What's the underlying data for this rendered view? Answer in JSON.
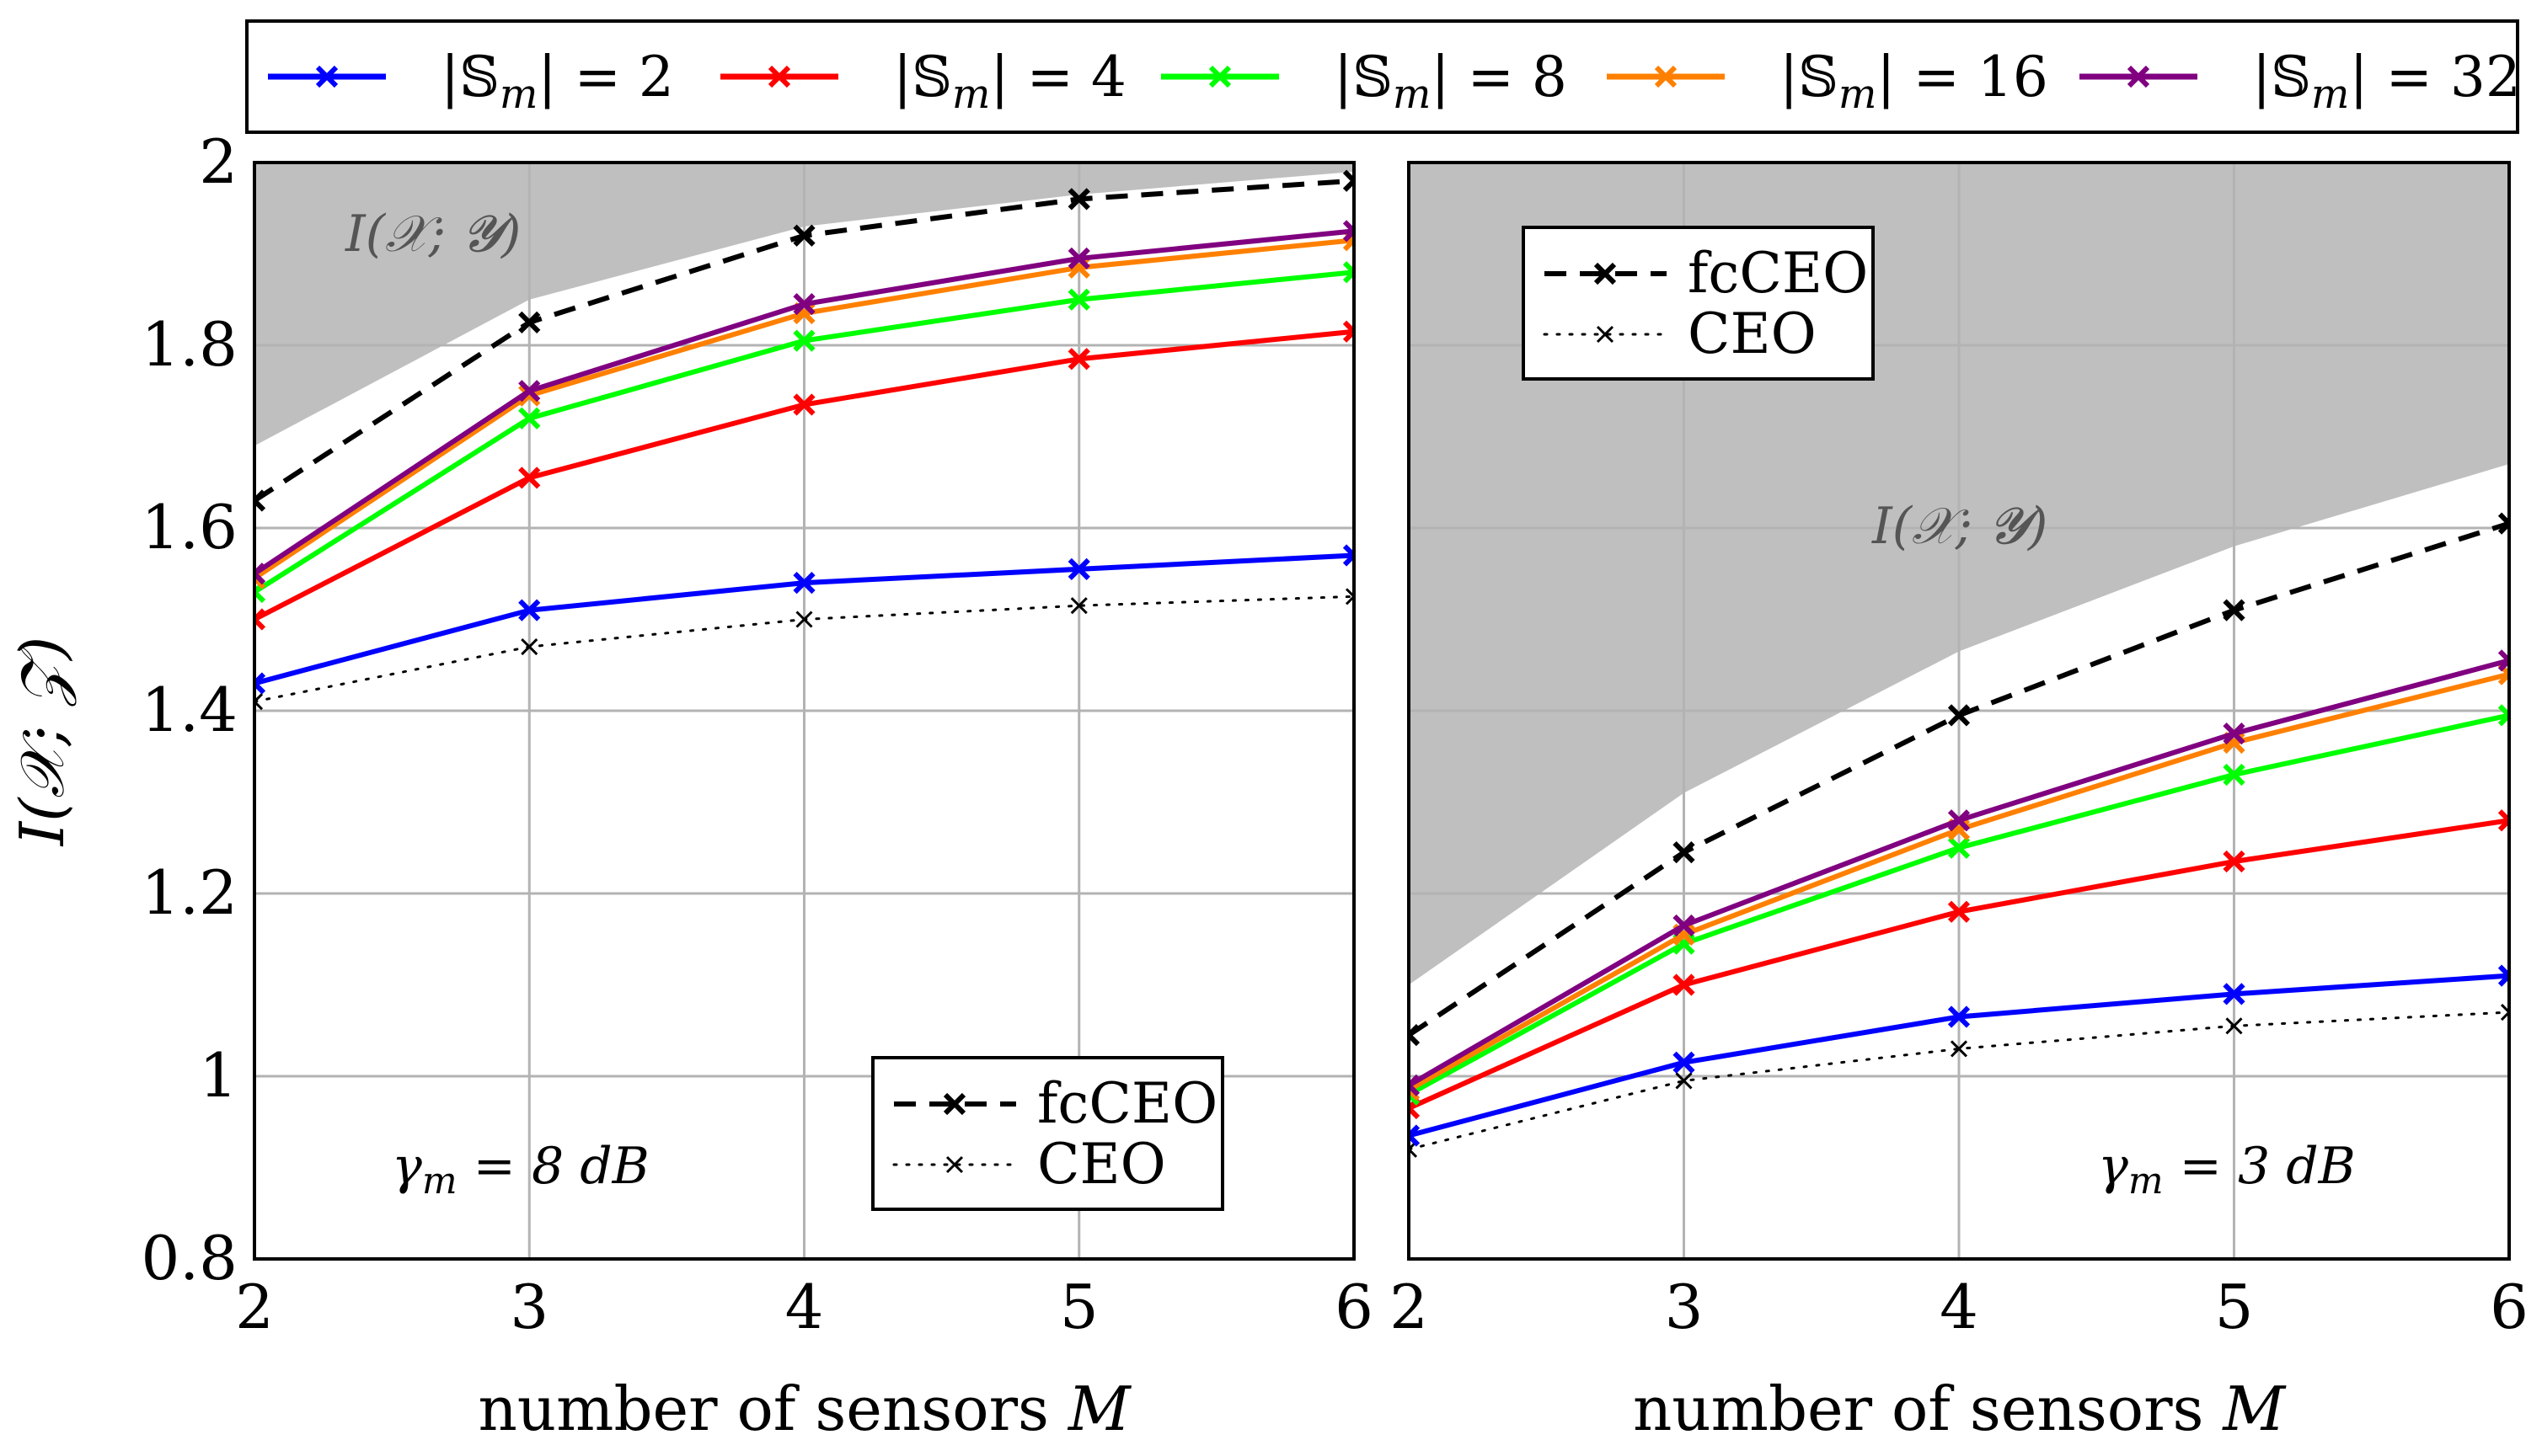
{
  "chart_data": [
    {
      "type": "line",
      "panel": "left",
      "annotation": "γm = 8 dB",
      "shaded_label": "I(X;Y)",
      "xlabel": "number of sensors M",
      "ylabel": "I(X;Z)",
      "xlim": [
        2,
        6
      ],
      "ylim": [
        0.8,
        2
      ],
      "xticks": [
        "2",
        "3",
        "4",
        "5",
        "6"
      ],
      "yticks": [
        "0.8",
        "1",
        "1.2",
        "1.4",
        "1.6",
        "1.8",
        "2"
      ],
      "x": [
        2,
        3,
        4,
        5,
        6
      ],
      "upper_bound": [
        1.69,
        1.85,
        1.93,
        1.965,
        1.99
      ],
      "series": [
        {
          "name": "|Sm| = 2",
          "values": [
            1.43,
            1.51,
            1.54,
            1.555,
            1.57
          ]
        },
        {
          "name": "|Sm| = 4",
          "values": [
            1.5,
            1.655,
            1.735,
            1.785,
            1.815
          ]
        },
        {
          "name": "|Sm| = 8",
          "values": [
            1.53,
            1.72,
            1.805,
            1.85,
            1.88
          ]
        },
        {
          "name": "|Sm| = 16",
          "values": [
            1.545,
            1.745,
            1.835,
            1.885,
            1.915
          ]
        },
        {
          "name": "|Sm| = 32",
          "values": [
            1.55,
            1.75,
            1.845,
            1.895,
            1.925
          ]
        },
        {
          "name": "fcCEO",
          "values": [
            1.63,
            1.825,
            1.92,
            1.96,
            1.98
          ]
        },
        {
          "name": "CEO",
          "values": [
            1.41,
            1.47,
            1.5,
            1.515,
            1.525
          ]
        }
      ]
    },
    {
      "type": "line",
      "panel": "right",
      "annotation": "γm = 3 dB",
      "shaded_label": "I(X;Y)",
      "xlabel": "number of sensors M",
      "ylabel": "",
      "xlim": [
        2,
        6
      ],
      "ylim": [
        0.8,
        2
      ],
      "xticks": [
        "2",
        "3",
        "4",
        "5",
        "6"
      ],
      "yticks": [],
      "x": [
        2,
        3,
        4,
        5,
        6
      ],
      "upper_bound": [
        1.1,
        1.31,
        1.465,
        1.58,
        1.67
      ],
      "series": [
        {
          "name": "|Sm| = 2",
          "values": [
            0.935,
            1.015,
            1.065,
            1.09,
            1.11
          ]
        },
        {
          "name": "|Sm| = 4",
          "values": [
            0.965,
            1.1,
            1.18,
            1.235,
            1.28
          ]
        },
        {
          "name": "|Sm| = 8",
          "values": [
            0.98,
            1.145,
            1.25,
            1.33,
            1.395
          ]
        },
        {
          "name": "|Sm| = 16",
          "values": [
            0.985,
            1.155,
            1.27,
            1.365,
            1.44
          ]
        },
        {
          "name": "|Sm| = 32",
          "values": [
            0.99,
            1.165,
            1.28,
            1.375,
            1.455
          ]
        },
        {
          "name": "fcCEO",
          "values": [
            1.045,
            1.245,
            1.395,
            1.51,
            1.605
          ]
        },
        {
          "name": "CEO",
          "values": [
            0.92,
            0.995,
            1.03,
            1.055,
            1.07
          ]
        }
      ]
    }
  ],
  "legend": {
    "entries": [
      {
        "label": "|Sm| = 2",
        "value": "2"
      },
      {
        "label": "|Sm| = 4",
        "value": "4"
      },
      {
        "label": "|Sm| = 8",
        "value": "8"
      },
      {
        "label": "|Sm| = 16",
        "value": "16"
      },
      {
        "label": "|Sm| = 32",
        "value": "32"
      }
    ],
    "inner": [
      {
        "label": "fcCEO"
      },
      {
        "label": "CEO"
      }
    ]
  },
  "colors": {
    "|Sm| = 2": "#0000ff",
    "|Sm| = 4": "#ff0000",
    "|Sm| = 8": "#00ff00",
    "|Sm| = 16": "#ff8000",
    "|Sm| = 32": "#800080",
    "fcCEO": "#000000",
    "CEO": "#000000",
    "shade": "#bfbfbf",
    "grid": "#b3b3b3"
  }
}
